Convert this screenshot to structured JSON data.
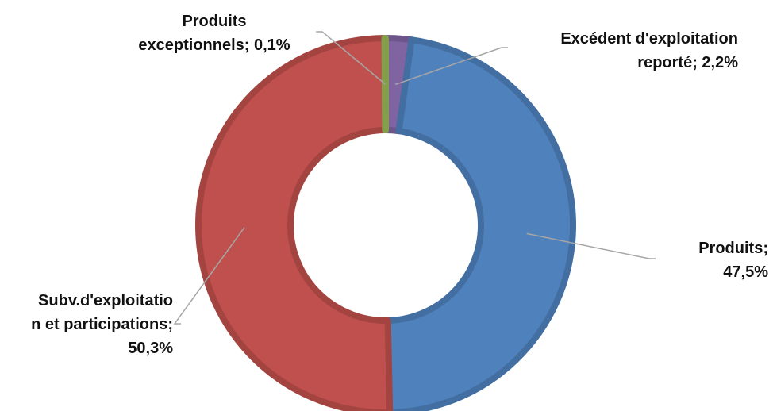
{
  "chart_data": {
    "type": "pie",
    "variant": "doughnut",
    "legend": "none",
    "slices": [
      {
        "category": "Excédent d'exploitation reporté",
        "value": 2.2,
        "value_label": "2,2%",
        "color": "#8064A2",
        "label_lines": [
          "Excédent d'exploitation",
          "reporté; 2,2%"
        ]
      },
      {
        "category": "Produits",
        "value": 47.5,
        "value_label": "47,5%",
        "color": "#4F81BD",
        "label_lines": [
          "Produits;",
          "47,5%"
        ]
      },
      {
        "category": "Subv.d'exploitation et participations",
        "value": 50.3,
        "value_label": "50,3%",
        "color": "#C0504D",
        "label_lines": [
          "Subv.d'exploitatio",
          "n et participations;",
          "50,3%"
        ]
      },
      {
        "category": "Produits exceptionnels",
        "value": 0.1,
        "value_label": "0,1%",
        "color": "#9BBB59",
        "label_lines": [
          "Produits",
          "exceptionnels; 0,1%"
        ]
      }
    ]
  }
}
